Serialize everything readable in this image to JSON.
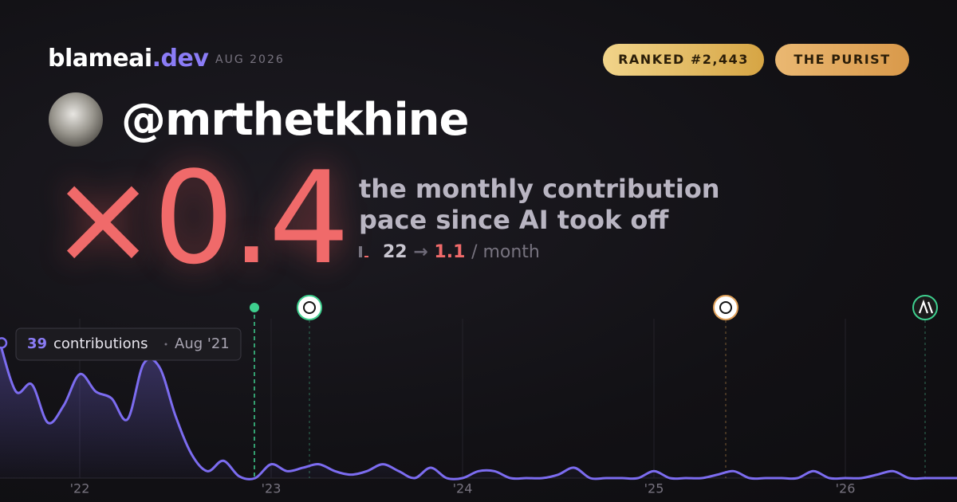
{
  "brand": {
    "name": "blameai",
    "tld": ".dev",
    "date": "AUG 2026"
  },
  "badges": [
    "RANKED #2,443",
    "THE PURIST"
  ],
  "username": "@mrthetkhine",
  "multiplier": "×0.4",
  "headline": [
    "the monthly contribution",
    "pace since AI took off"
  ],
  "stats": {
    "before": "22",
    "arrow": "→",
    "after": "1.1",
    "unit": "/ month"
  },
  "chart_data": {
    "type": "line",
    "categories": [
      null,
      null,
      null,
      null,
      null,
      "'22",
      null,
      null,
      null,
      null,
      null,
      null,
      null,
      null,
      null,
      null,
      null,
      "'23",
      null,
      null,
      null,
      null,
      null,
      null,
      null,
      null,
      null,
      null,
      null,
      "'24",
      null,
      null,
      null,
      null,
      null,
      null,
      null,
      null,
      null,
      null,
      null,
      "'25",
      null,
      null,
      null,
      null,
      null,
      null,
      null,
      null,
      null,
      null,
      null,
      "'26",
      null,
      null,
      null,
      null,
      null,
      null,
      null
    ],
    "values": [
      39,
      25,
      27,
      16,
      21,
      30,
      25,
      23,
      17,
      33,
      32,
      18,
      7,
      2,
      5,
      0.5,
      0,
      4,
      2,
      3,
      4,
      2,
      1,
      2,
      4,
      2,
      0,
      3,
      0,
      0,
      2,
      2,
      0,
      0,
      0,
      1,
      3,
      0,
      0,
      0,
      0,
      2,
      0,
      0,
      0,
      1,
      2,
      0,
      0,
      0,
      0,
      2,
      0,
      0,
      0,
      1,
      2,
      0,
      0,
      0,
      0
    ],
    "color": "#7c6cf0",
    "ylim": [
      0,
      46
    ],
    "tooltip": {
      "label": "contributions",
      "date": "Aug '21"
    }
  }
}
